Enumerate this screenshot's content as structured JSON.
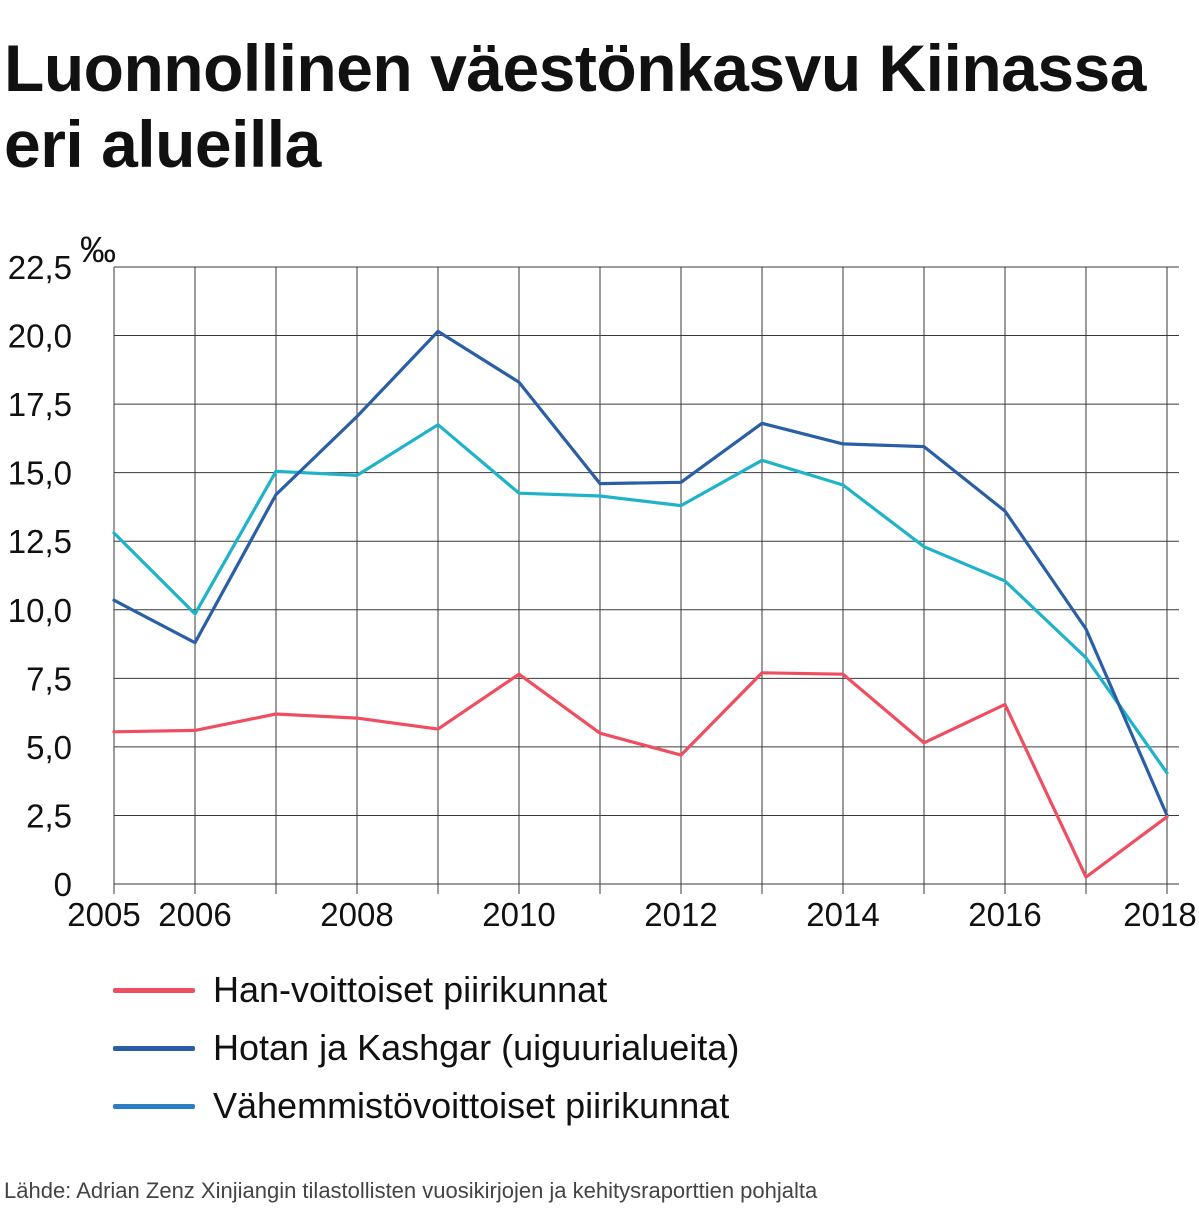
{
  "title": "Luonnollinen väestönkasvu Kiinassa eri alueilla",
  "source": "Lähde: Adrian Zenz Xinjiangin tilastollisten vuosikirjojen ja kehitysraporttien pohjalta",
  "legend": [
    {
      "label": "Han-voittoiset piirikunnat",
      "color": "#ef4e61"
    },
    {
      "label": "Hotan ja Kashgar (uiguurialueita)",
      "color": "#2a5fa6"
    },
    {
      "label": "Vähemmistövoittoiset piirikunnat",
      "color": "#2a7ec3"
    }
  ],
  "chart_data": {
    "type": "line",
    "title": "Luonnollinen väestönkasvu Kiinassa eri alueilla",
    "ylabel": "‰",
    "xlabel": "",
    "x": [
      2005,
      2006,
      2007,
      2008,
      2009,
      2010,
      2011,
      2012,
      2013,
      2014,
      2015,
      2016,
      2017,
      2018
    ],
    "xticks": [
      "2005",
      "2006",
      "2008",
      "2010",
      "2012",
      "2014",
      "2016",
      "2018"
    ],
    "xtick_values": [
      2005,
      2006,
      2008,
      2010,
      2012,
      2014,
      2016,
      2018
    ],
    "yticks": [
      "0",
      "2,5",
      "5,0",
      "7,5",
      "10,0",
      "12,5",
      "15,0",
      "17,5",
      "20,0",
      "22,5"
    ],
    "ytick_values": [
      0,
      2.5,
      5,
      7.5,
      10,
      12.5,
      15,
      17.5,
      20,
      22.5
    ],
    "xgrid_values": [
      2005,
      2006,
      2007,
      2008,
      2009,
      2010,
      2011,
      2012,
      2013,
      2014,
      2015,
      2016,
      2017,
      2018
    ],
    "xlim": [
      2005,
      2018
    ],
    "ylim": [
      0,
      22.5
    ],
    "grid": true,
    "legend_position": "bottom",
    "series": [
      {
        "name": "Han-voittoiset piirikunnat",
        "color": "#ef4e61",
        "values": [
          5.55,
          5.6,
          6.2,
          6.05,
          5.65,
          7.65,
          5.5,
          4.7,
          7.7,
          7.65,
          5.15,
          6.55,
          0.25,
          2.45
        ]
      },
      {
        "name": "Hotan ja Kashgar (uiguurialueita)",
        "color": "#2a5fa6",
        "values": [
          10.35,
          8.8,
          14.2,
          17.05,
          20.15,
          18.3,
          14.6,
          14.65,
          16.8,
          16.05,
          15.95,
          13.6,
          9.3,
          2.5
        ]
      },
      {
        "name": "Vähemmistövoittoiset piirikunnat",
        "color": "#1fb3c9",
        "values": [
          12.8,
          9.85,
          15.05,
          14.9,
          16.75,
          14.25,
          14.15,
          13.8,
          15.45,
          14.55,
          12.3,
          11.05,
          8.25,
          4.05
        ]
      }
    ]
  }
}
